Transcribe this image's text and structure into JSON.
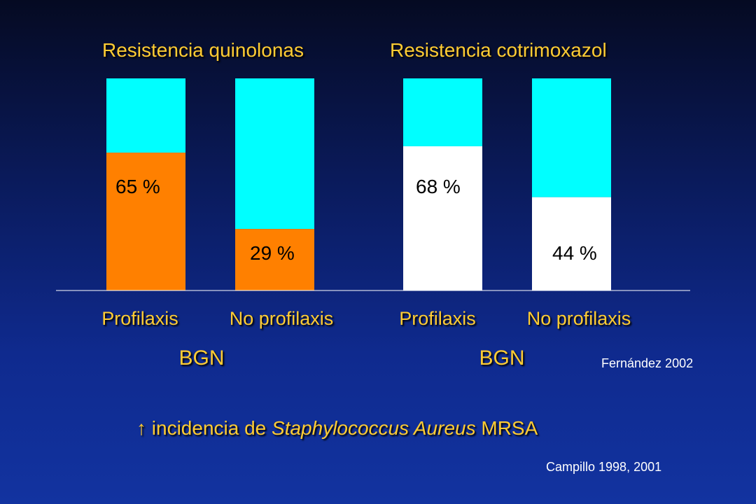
{
  "chart_data": {
    "type": "bar",
    "stacked": true,
    "titles": [
      "Resistencia quinolonas",
      "Resistencia cotrimoxazol"
    ],
    "groups": [
      "BGN",
      "BGN"
    ],
    "categories": [
      "Profilaxis",
      "No profilaxis",
      "Profilaxis",
      "No profilaxis"
    ],
    "values": [
      65,
      29,
      68,
      44
    ],
    "value_labels": [
      "65 %",
      "29 %",
      "68 %",
      "44 %"
    ],
    "ylim": [
      0,
      100
    ],
    "bar_colors": [
      "#ff8000",
      "#ff8000",
      "#ffffff",
      "#ffffff"
    ],
    "remainder_color": "#00ffff",
    "grid": false
  },
  "citations": {
    "fernandez": "Fernández 2002",
    "campillo": "Campillo 1998, 2001"
  },
  "note": {
    "arrow": "↑",
    "prefix": "incidencia de",
    "species": "Staphylococcus Aureus",
    "suffix": "MRSA"
  },
  "colors": {
    "title_text": "#ffcc33",
    "background_top": "#050a22",
    "background_bottom": "#1233a0"
  }
}
